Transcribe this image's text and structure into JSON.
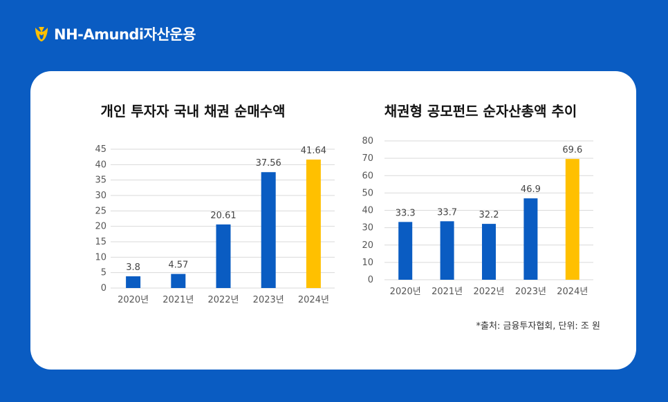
{
  "brand": {
    "name": "NH-Amundi자산운용",
    "accent_color": "#0a5cc2",
    "logo_icon": "nh-symbol-icon"
  },
  "chart_data": [
    {
      "type": "bar",
      "title": "개인 투자자 국내 채권 순매수액",
      "categories": [
        "2020년",
        "2021년",
        "2022년",
        "2023년",
        "2024년"
      ],
      "values": [
        3.8,
        4.57,
        20.61,
        37.56,
        41.64
      ],
      "value_labels": [
        "3.8",
        "4.57",
        "20.61",
        "37.56",
        "41.64"
      ],
      "yticks": [
        "0",
        "5",
        "10",
        "15",
        "20",
        "25",
        "30",
        "35",
        "40",
        "45"
      ],
      "ylim": [
        0,
        45
      ],
      "grid": true,
      "bar_color": "#0a5cc2",
      "highlight_color": "#ffc000",
      "highlight_index": 4
    },
    {
      "type": "bar",
      "title": "채권형 공모펀드 순자산총액 추이",
      "categories": [
        "2020년",
        "2021년",
        "2022년",
        "2023년",
        "2024년"
      ],
      "values": [
        33.3,
        33.7,
        32.2,
        46.9,
        69.6
      ],
      "value_labels": [
        "33.3",
        "33.7",
        "32.2",
        "46.9",
        "69.6"
      ],
      "yticks": [
        "0",
        "10",
        "20",
        "30",
        "40",
        "50",
        "60",
        "70",
        "80"
      ],
      "ylim": [
        0,
        80
      ],
      "grid": true,
      "bar_color": "#0a5cc2",
      "highlight_color": "#ffc000",
      "highlight_index": 4
    }
  ],
  "source_note": "*출처: 금융투자협회, 단위: 조 원"
}
